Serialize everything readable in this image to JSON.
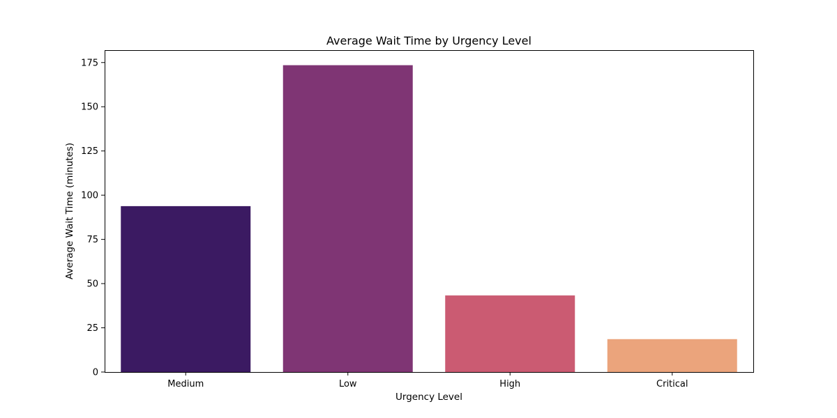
{
  "chart_data": {
    "type": "bar",
    "title": "Average Wait Time by Urgency Level",
    "xlabel": "Urgency Level",
    "ylabel": "Average Wait Time (minutes)",
    "categories": [
      "Medium",
      "Low",
      "High",
      "Critical"
    ],
    "values": [
      93.8,
      173.5,
      43.3,
      18.6
    ],
    "colors": [
      "#3b1a62",
      "#7f3574",
      "#cb5b72",
      "#eba47c"
    ],
    "ylim": [
      0,
      182
    ],
    "yticks": [
      0,
      25,
      50,
      75,
      100,
      125,
      150,
      175
    ],
    "grid": false,
    "legend": "none"
  }
}
